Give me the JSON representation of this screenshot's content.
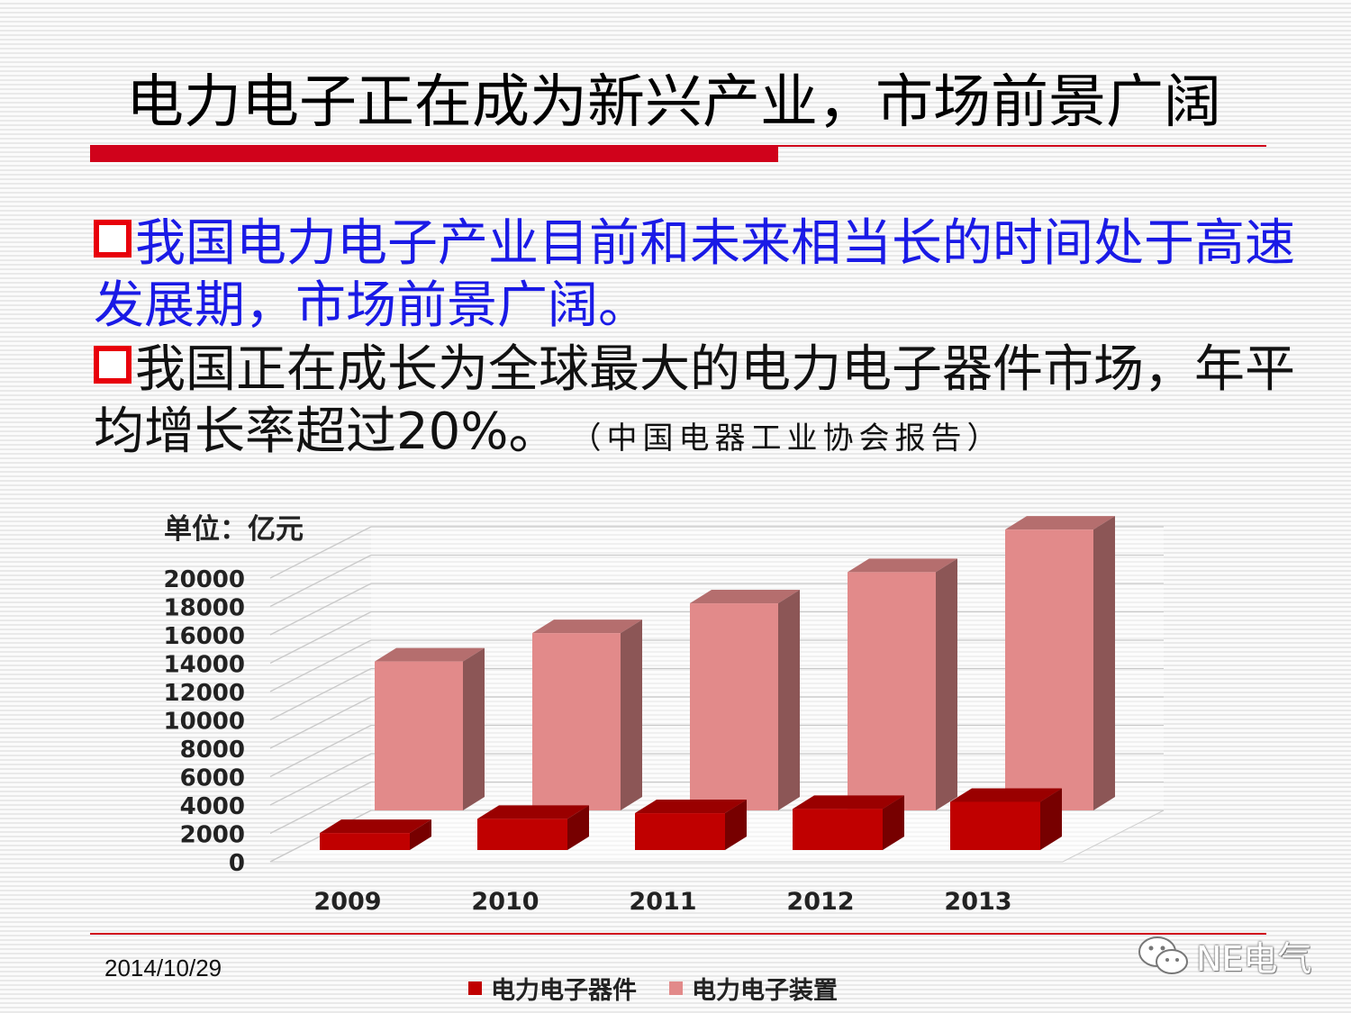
{
  "slide": {
    "title": "电力电子正在成为新兴产业，市场前景广阔",
    "bullet1": "我国电力电子产业目前和未来相当长的时间处于高速发展期，市场前景广阔。",
    "bullet2": "我国正在成长为全球最大的电力电子器件市场，年平均增长率超过20%。",
    "bullet2_note": "（中国电器工业协会报告）",
    "date": "2014/10/29",
    "watermark_text": "NE电气",
    "bullet_icon": "hollow-square-icon",
    "watermark_icon": "wechat-icon",
    "colors": {
      "title_rule": "#d0021b",
      "bullet_square": "#e8000b",
      "bullet1_text": "#1a1ae6"
    }
  },
  "chart_data": {
    "type": "bar",
    "style": "3d-clustered",
    "unit_label": "单位：亿元",
    "categories": [
      "2009",
      "2010",
      "2011",
      "2012",
      "2013"
    ],
    "series": [
      {
        "name": "电力电子器件",
        "values": [
          1200,
          2200,
          2600,
          2900,
          3400
        ],
        "color": "#c00000"
      },
      {
        "name": "电力电子装置",
        "values": [
          10500,
          12500,
          14600,
          16800,
          19800
        ],
        "color": "#e28a8a"
      }
    ],
    "ylim": [
      0,
      20000
    ],
    "yticks": [
      "0",
      "2000",
      "4000",
      "6000",
      "8000",
      "10000",
      "12000",
      "14000",
      "16000",
      "18000",
      "20000"
    ],
    "grid": true,
    "legend_position": "bottom"
  }
}
